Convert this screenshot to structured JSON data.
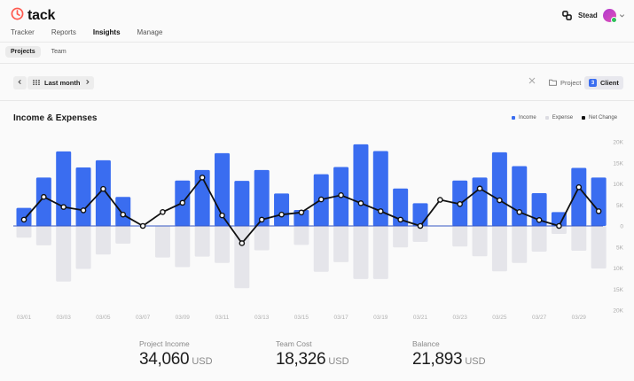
{
  "app": {
    "name": "tack",
    "workspace": "Stead"
  },
  "nav": [
    "Tracker",
    "Reports",
    "Insights",
    "Manage"
  ],
  "nav_active": "Insights",
  "subtabs": [
    "Projects",
    "Team"
  ],
  "subtab_active": "Projects",
  "filter": {
    "period": "Last month",
    "group_project": "Project",
    "group_client": "Client",
    "client_count": "3"
  },
  "legend": {
    "income": "Income",
    "expense": "Expense",
    "net": "Net Change"
  },
  "colors": {
    "income": "#3a6df0",
    "expense": "#e5e5ea",
    "net": "#111111",
    "brand": "#ff5a4f"
  },
  "icons": [
    "logo-clock-icon",
    "link-icon",
    "chevron-down-icon",
    "chevron-left-icon",
    "chevron-right-icon",
    "calendar-grid-icon",
    "close-icon",
    "folder-icon"
  ],
  "chart_title": "Income & Expenses",
  "chart_data": {
    "type": "bar",
    "title": "Income & Expenses",
    "categories": [
      "03/01",
      "03/02",
      "03/03",
      "03/04",
      "03/05",
      "03/06",
      "03/07",
      "03/08",
      "03/09",
      "03/10",
      "03/11",
      "03/12",
      "03/13",
      "03/14",
      "03/15",
      "03/16",
      "03/17",
      "03/18",
      "03/19",
      "03/20",
      "03/21",
      "03/22",
      "03/23",
      "03/24",
      "03/25",
      "03/26",
      "03/27",
      "03/28",
      "03/29",
      "03/30"
    ],
    "tick_labels": [
      "03/01",
      "03/03",
      "03/05",
      "03/07",
      "03/09",
      "03/11",
      "03/13",
      "03/15",
      "03/17",
      "03/19",
      "03/21",
      "03/23",
      "03/25",
      "03/27",
      "03/29"
    ],
    "y_ticks": [
      "20K",
      "15K",
      "10K",
      "5K",
      "0",
      "5K",
      "10K",
      "15K",
      "20K"
    ],
    "ylim": [
      -20000,
      20000
    ],
    "grid": false,
    "legend_position": "top-right",
    "series": [
      {
        "name": "Income",
        "values": [
          4300,
          11500,
          17700,
          13900,
          15600,
          6900,
          0,
          0,
          10800,
          13300,
          17300,
          10700,
          13300,
          7700,
          3800,
          12300,
          14000,
          19400,
          17800,
          8900,
          5400,
          0,
          10800,
          11500,
          17500,
          14200,
          7800,
          3300,
          13800,
          11500
        ]
      },
      {
        "name": "Expense",
        "values": [
          -2800,
          -4600,
          -13200,
          -10200,
          -6800,
          -4200,
          0,
          -7500,
          -9800,
          -7300,
          -8800,
          -14800,
          -5800,
          0,
          -4500,
          -10900,
          -8600,
          -12600,
          -12600,
          -5100,
          -3800,
          0,
          -4900,
          -7200,
          -10800,
          -8800,
          -6100,
          -1900,
          -5900,
          -10100
        ]
      },
      {
        "name": "Net Change",
        "values": [
          1500,
          6900,
          4500,
          3700,
          8800,
          2700,
          0,
          3300,
          5500,
          11500,
          2500,
          -4100,
          1500,
          2700,
          3200,
          6300,
          7300,
          5400,
          3500,
          1500,
          0,
          6200,
          5200,
          8900,
          6100,
          3300,
          1400,
          0,
          9200,
          3500
        ]
      }
    ]
  },
  "stats": [
    {
      "label": "Project Income",
      "value": "34,060",
      "unit": "USD"
    },
    {
      "label": "Team Cost",
      "value": "18,326",
      "unit": "USD"
    },
    {
      "label": "Balance",
      "value": "21,893",
      "unit": "USD"
    }
  ]
}
